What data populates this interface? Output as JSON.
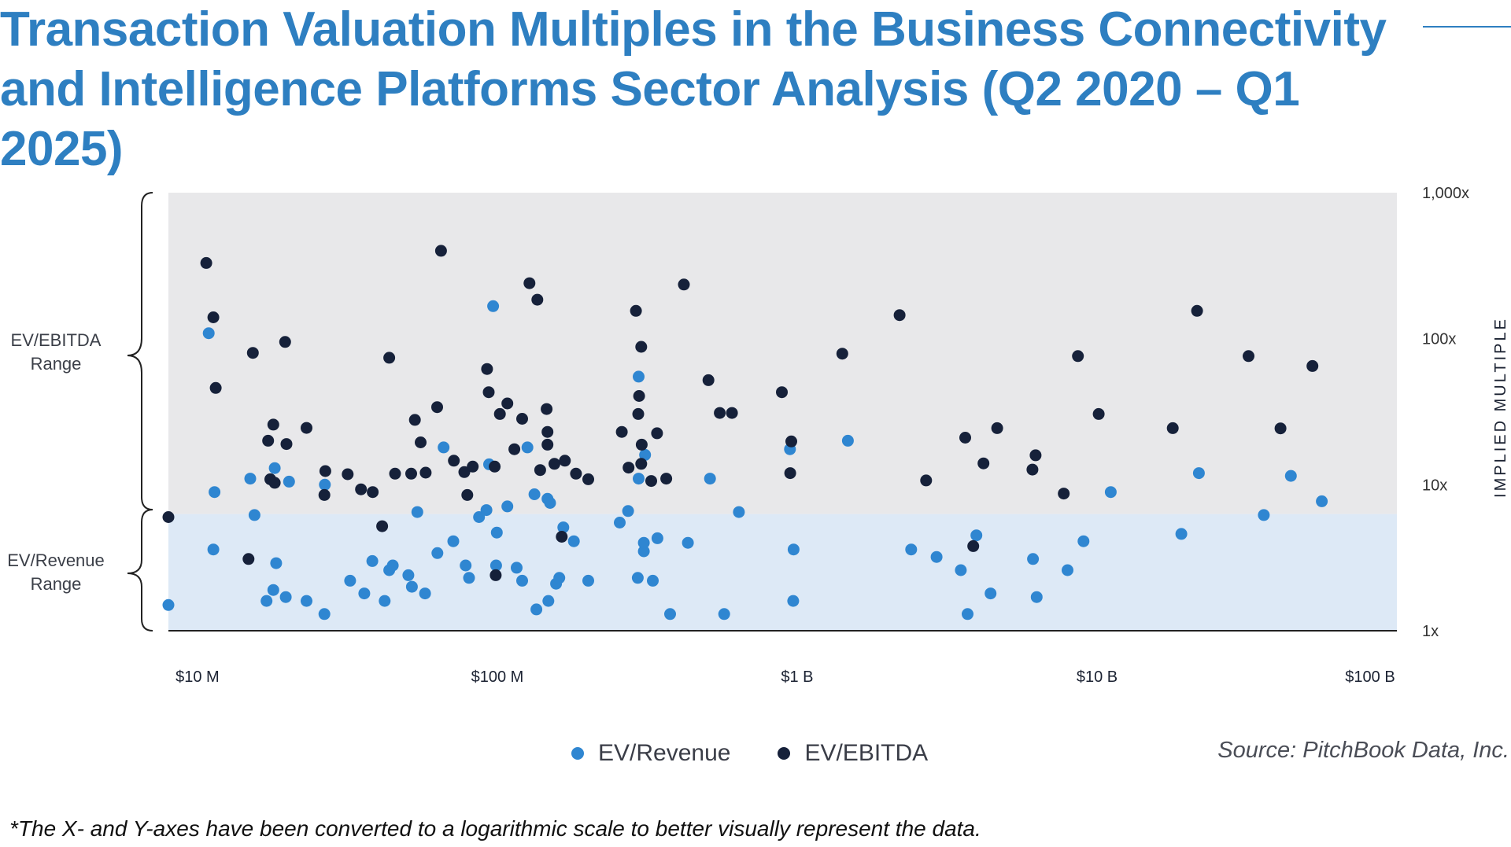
{
  "title": "Transaction Valuation Multiples in the Business Connectivity and Intelligence Platforms Sector Analysis (Q2 2020 – Q1 2025)",
  "ranges": {
    "ebitda_line1": "EV/EBITDA",
    "ebitda_line2": "Range",
    "revenue_line1": "EV/Revenue",
    "revenue_line2": "Range"
  },
  "legend": {
    "revenue": "EV/Revenue",
    "ebitda": "EV/EBITDA"
  },
  "source": "Source: PitchBook Data, Inc.",
  "footnote": "*The X- and Y-axes have been converted to a logarithmic scale to better visually represent the data.",
  "colors": {
    "revenue": "#2f86d1",
    "ebitda": "#16213a",
    "title": "#2e7fc1",
    "ebitda_band": "#e8e8ea",
    "revenue_band": "#dde9f6"
  },
  "chart_data": {
    "type": "scatter",
    "title": "Transaction Valuation Multiples in the Business Connectivity and Intelligence Platforms Sector Analysis (Q2 2020 – Q1 2025)",
    "x_scale": "log",
    "y_scale": "log",
    "x_unit": "USD",
    "ylabel": "IMPLIED MULTIPLE",
    "y_axis_side": "right",
    "xlim": [
      8000000,
      100000000000
    ],
    "ylim": [
      1,
      1000
    ],
    "x_ticks": [
      {
        "value": 10000000,
        "label": "$10 M"
      },
      {
        "value": 100000000,
        "label": "$100 M"
      },
      {
        "value": 1000000000,
        "label": "$1 B"
      },
      {
        "value": 10000000000,
        "label": "$10 B"
      },
      {
        "value": 100000000000,
        "label": "$100 B"
      }
    ],
    "y_ticks": [
      {
        "value": 1,
        "label": "1x"
      },
      {
        "value": 10,
        "label": "10x"
      },
      {
        "value": 100,
        "label": "100x"
      },
      {
        "value": 1000,
        "label": "1,000x"
      }
    ],
    "bands": [
      {
        "name": "EV/EBITDA Range",
        "y_from": 6.3,
        "y_to": 1000
      },
      {
        "name": "EV/Revenue Range",
        "y_from": 1,
        "y_to": 6.3
      }
    ],
    "grid": false,
    "legend_position": "bottom-center",
    "series": [
      {
        "name": "EV/Revenue",
        "points": [
          [
            8000000,
            1.5
          ],
          [
            10900000,
            109
          ],
          [
            11400000,
            8.9
          ],
          [
            11300000,
            3.6
          ],
          [
            15000000,
            11
          ],
          [
            15500000,
            6.2
          ],
          [
            17000000,
            1.6
          ],
          [
            17900000,
            1.9
          ],
          [
            18100000,
            13
          ],
          [
            18300000,
            2.9
          ],
          [
            19700000,
            1.7
          ],
          [
            20200000,
            10.5
          ],
          [
            23100000,
            1.6
          ],
          [
            26500000,
            1.3
          ],
          [
            26600000,
            10
          ],
          [
            32300000,
            2.2
          ],
          [
            36000000,
            1.8
          ],
          [
            38300000,
            3
          ],
          [
            42100000,
            1.6
          ],
          [
            43600000,
            2.6
          ],
          [
            44800000,
            2.8
          ],
          [
            50500000,
            2.4
          ],
          [
            51900000,
            2
          ],
          [
            54100000,
            6.5
          ],
          [
            57400000,
            1.8
          ],
          [
            63100000,
            3.4
          ],
          [
            66200000,
            18
          ],
          [
            71300000,
            4.1
          ],
          [
            78400000,
            2.8
          ],
          [
            80500000,
            2.3
          ],
          [
            86900000,
            6
          ],
          [
            92000000,
            6.7
          ],
          [
            93900000,
            13.8
          ],
          [
            99100000,
            2.8
          ],
          [
            99600000,
            4.7
          ],
          [
            96800000,
            167
          ],
          [
            108000000,
            7.1
          ],
          [
            116000000,
            2.7
          ],
          [
            121000000,
            2.2
          ],
          [
            126000000,
            18
          ],
          [
            133000000,
            8.6
          ],
          [
            135000000,
            1.4
          ],
          [
            148000000,
            1.6
          ],
          [
            147000000,
            8
          ],
          [
            150000000,
            7.5
          ],
          [
            157000000,
            2.1
          ],
          [
            161000000,
            2.3
          ],
          [
            166000000,
            5.1
          ],
          [
            180000000,
            4.1
          ],
          [
            201000000,
            2.2
          ],
          [
            256000000,
            5.5
          ],
          [
            273000000,
            6.6
          ],
          [
            294000000,
            2.3
          ],
          [
            296000000,
            11
          ],
          [
            296000000,
            55
          ],
          [
            311000000,
            16
          ],
          [
            308000000,
            3.5
          ],
          [
            308000000,
            4
          ],
          [
            330000000,
            2.2
          ],
          [
            342000000,
            4.3
          ],
          [
            377000000,
            1.3
          ],
          [
            432000000,
            4
          ],
          [
            512000000,
            11
          ],
          [
            571000000,
            1.3
          ],
          [
            639000000,
            6.5
          ],
          [
            946000000,
            17.5
          ],
          [
            973000000,
            3.6
          ],
          [
            970000000,
            1.6
          ],
          [
            1476000000,
            20
          ],
          [
            2400000000,
            3.6
          ],
          [
            2917000000,
            3.2
          ],
          [
            3514000000,
            2.6
          ],
          [
            3700000000,
            1.3
          ],
          [
            3959000000,
            4.5
          ],
          [
            4415000000,
            1.8
          ],
          [
            6114000000,
            3.1
          ],
          [
            6292000000,
            1.7
          ],
          [
            7975000000,
            2.6
          ],
          [
            9013000000,
            4.1
          ],
          [
            11108000000,
            8.9
          ],
          [
            19108000000,
            4.6
          ],
          [
            21861000000,
            12
          ],
          [
            35994000000,
            6.2
          ],
          [
            44300000000,
            11.5
          ],
          [
            56200000000,
            7.7
          ]
        ]
      },
      {
        "name": "EV/EBITDA",
        "points": [
          [
            8000000,
            6
          ],
          [
            10700000,
            330
          ],
          [
            11300000,
            140
          ],
          [
            11500000,
            46
          ],
          [
            14800000,
            3.1
          ],
          [
            15300000,
            80
          ],
          [
            17200000,
            20
          ],
          [
            17500000,
            10.9
          ],
          [
            17900000,
            25.8
          ],
          [
            18100000,
            10.3
          ],
          [
            19600000,
            95
          ],
          [
            19800000,
            19
          ],
          [
            23100000,
            24.5
          ],
          [
            26700000,
            12.4
          ],
          [
            26500000,
            8.5
          ],
          [
            31700000,
            11.8
          ],
          [
            35100000,
            9.3
          ],
          [
            38400000,
            8.9
          ],
          [
            41300000,
            5.2
          ],
          [
            43600000,
            74
          ],
          [
            45600000,
            11.9
          ],
          [
            51600000,
            11.9
          ],
          [
            53100000,
            27.8
          ],
          [
            55500000,
            19.5
          ],
          [
            57700000,
            12.1
          ],
          [
            63000000,
            34
          ],
          [
            64900000,
            400
          ],
          [
            71600000,
            14.6
          ],
          [
            77600000,
            12.2
          ],
          [
            79400000,
            8.5
          ],
          [
            82800000,
            13.3
          ],
          [
            92400000,
            62
          ],
          [
            93600000,
            43
          ],
          [
            98000000,
            13.3
          ],
          [
            98800000,
            2.4
          ],
          [
            102000000,
            30.5
          ],
          [
            108000000,
            36
          ],
          [
            114000000,
            17.5
          ],
          [
            121000000,
            28.3
          ],
          [
            128000000,
            240
          ],
          [
            136000000,
            185
          ],
          [
            139000000,
            12.6
          ],
          [
            146000000,
            33
          ],
          [
            147000000,
            23
          ],
          [
            147000000,
            18.8
          ],
          [
            155000000,
            13.9
          ],
          [
            164000000,
            4.4
          ],
          [
            168000000,
            14.6
          ],
          [
            183000000,
            11.9
          ],
          [
            201000000,
            10.9
          ],
          [
            260000000,
            23
          ],
          [
            274000000,
            13.1
          ],
          [
            290000000,
            155
          ],
          [
            295000000,
            30.5
          ],
          [
            297000000,
            40.5
          ],
          [
            302000000,
            88
          ],
          [
            302000000,
            13.9
          ],
          [
            303000000,
            18.8
          ],
          [
            326000000,
            10.6
          ],
          [
            341000000,
            22.5
          ],
          [
            366000000,
            11
          ],
          [
            419000000,
            235
          ],
          [
            506000000,
            52
          ],
          [
            552000000,
            31
          ],
          [
            606000000,
            31
          ],
          [
            889000000,
            43
          ],
          [
            956000000,
            19.8
          ],
          [
            948000000,
            12
          ],
          [
            1414000000,
            79
          ],
          [
            2196000000,
            145
          ],
          [
            2691000000,
            10.7
          ],
          [
            3635000000,
            21
          ],
          [
            3866000000,
            3.8
          ],
          [
            4181000000,
            14
          ],
          [
            4646000000,
            24.4
          ],
          [
            6088000000,
            12.7
          ],
          [
            6237000000,
            15.9
          ],
          [
            7744000000,
            8.7
          ],
          [
            8637000000,
            76
          ],
          [
            10129000000,
            30.5
          ],
          [
            17885000000,
            24.4
          ],
          [
            21561000000,
            155
          ],
          [
            32000000000,
            76
          ],
          [
            40900000000,
            24.3
          ],
          [
            52300000000,
            65
          ]
        ]
      }
    ]
  }
}
